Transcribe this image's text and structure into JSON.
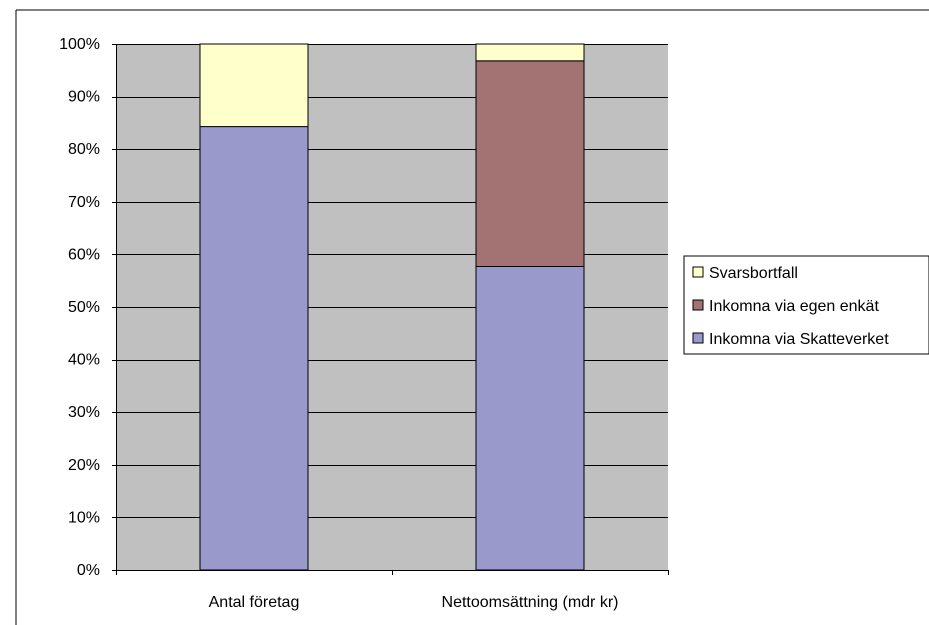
{
  "chart_data": {
    "type": "bar",
    "stacked": true,
    "percent": true,
    "categories": [
      "Antal företag",
      "Nettoomsättning (mdr kr)"
    ],
    "series": [
      {
        "name": "Inkomna via Skatteverket",
        "values": [
          84.3,
          57.7
        ],
        "color": "#9999cc"
      },
      {
        "name": "Inkomna via egen enkät",
        "values": [
          0,
          39.1
        ],
        "color": "#a37272"
      },
      {
        "name": "Svarsbortfall",
        "values": [
          15.7,
          3.2
        ],
        "color": "#ffffcc"
      }
    ],
    "yticks": [
      "0%",
      "10%",
      "20%",
      "30%",
      "40%",
      "50%",
      "60%",
      "70%",
      "80%",
      "90%",
      "100%"
    ],
    "ylim": [
      0,
      100
    ],
    "grid": true,
    "plot_background": "#c0c0c0",
    "legend_position": "right",
    "legend_order": [
      "Svarsbortfall",
      "Inkomna via egen enkät",
      "Inkomna via Skatteverket"
    ]
  }
}
